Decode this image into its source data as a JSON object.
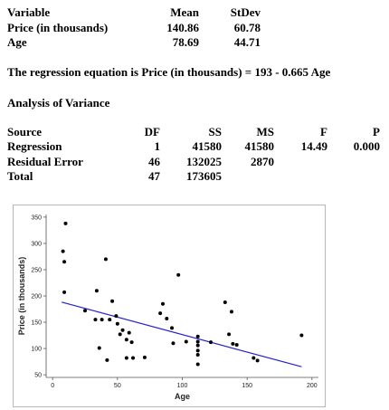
{
  "summary_table": {
    "headers": [
      "Variable",
      "Mean",
      "StDev"
    ],
    "rows": [
      [
        "Price (in thousands)",
        "140.86",
        "60.78"
      ],
      [
        "Age",
        "78.69",
        "44.71"
      ]
    ]
  },
  "regression_equation": "The regression equation is Price (in thousands) = 193 - 0.665 Age",
  "anova_title": "Analysis of Variance",
  "anova_table": {
    "headers": [
      "Source",
      "DF",
      "SS",
      "MS",
      "F",
      "P"
    ],
    "rows": [
      [
        "Regression",
        "1",
        "41580",
        "41580",
        "14.49",
        "0.000"
      ],
      [
        "Residual Error",
        "46",
        "132025",
        "2870",
        "",
        ""
      ],
      [
        "Total",
        "47",
        "173605",
        "",
        "",
        ""
      ]
    ]
  },
  "chart_data": {
    "type": "scatter",
    "xlabel": "Age",
    "ylabel": "Price (in thousands)",
    "xlim": [
      -5,
      205
    ],
    "ylim": [
      45,
      355
    ],
    "x_ticks": [
      0,
      50,
      100,
      150,
      200
    ],
    "y_ticks": [
      50,
      100,
      150,
      200,
      250,
      300,
      350
    ],
    "grid": false,
    "line_color": "#2222cc",
    "point_color": "#000000",
    "regression_line": {
      "intercept": 193,
      "slope": -0.665,
      "x_range": [
        7,
        192
      ]
    },
    "points": [
      [
        10,
        338
      ],
      [
        8,
        285
      ],
      [
        9,
        265
      ],
      [
        9,
        207
      ],
      [
        25,
        172
      ],
      [
        34,
        210
      ],
      [
        33,
        155
      ],
      [
        38,
        155
      ],
      [
        36,
        101
      ],
      [
        41,
        270
      ],
      [
        42,
        78
      ],
      [
        44,
        155
      ],
      [
        46,
        190
      ],
      [
        49,
        162
      ],
      [
        50,
        147
      ],
      [
        52,
        127
      ],
      [
        54,
        135
      ],
      [
        57,
        117
      ],
      [
        59,
        130
      ],
      [
        57,
        82
      ],
      [
        61,
        112
      ],
      [
        62,
        82
      ],
      [
        71,
        83
      ],
      [
        83,
        167
      ],
      [
        85,
        185
      ],
      [
        88,
        157
      ],
      [
        92,
        139
      ],
      [
        93,
        110
      ],
      [
        97,
        240
      ],
      [
        103,
        113
      ],
      [
        112,
        123
      ],
      [
        112,
        113
      ],
      [
        112,
        106
      ],
      [
        112,
        96
      ],
      [
        112,
        88
      ],
      [
        112,
        70
      ],
      [
        122,
        112
      ],
      [
        133,
        188
      ],
      [
        136,
        127
      ],
      [
        138,
        170
      ],
      [
        139,
        109
      ],
      [
        142,
        107
      ],
      [
        155,
        82
      ],
      [
        158,
        77
      ],
      [
        192,
        125
      ]
    ]
  }
}
